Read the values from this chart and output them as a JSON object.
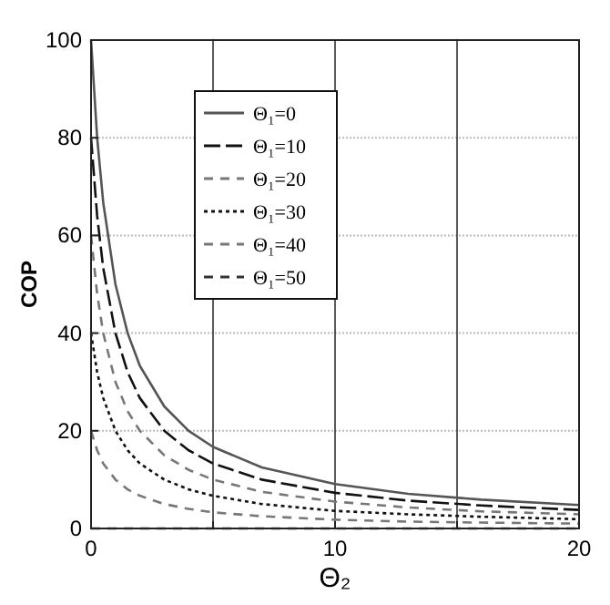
{
  "chart_data": {
    "type": "line",
    "xlabel": "Θ₂",
    "ylabel": "COP",
    "x": [
      0,
      0.25,
      0.5,
      1,
      1.5,
      2,
      3,
      4,
      5,
      7,
      10,
      13,
      16,
      20
    ],
    "xlim": [
      0,
      20
    ],
    "ylim": [
      0,
      100
    ],
    "xticks": [
      0,
      {
        "value": 5,
        "label": null
      },
      10,
      {
        "value": 15,
        "label": null
      },
      20
    ],
    "yticks": [
      0,
      20,
      40,
      60,
      80,
      100
    ],
    "grid": true,
    "legend": "top",
    "series": [
      {
        "name": "Θ₁=0",
        "color": "#555555",
        "line_style": "solid",
        "values": [
          100,
          80,
          66.7,
          50,
          40,
          33.3,
          25,
          20,
          16.7,
          12.5,
          9.1,
          7.1,
          5.9,
          4.8
        ]
      },
      {
        "name": "Θ₁=10",
        "color": "#111111",
        "line_style": "dashed",
        "values": [
          80,
          64,
          53.3,
          40,
          32,
          26.7,
          20,
          16,
          13.3,
          10,
          7.3,
          5.7,
          4.7,
          3.8
        ]
      },
      {
        "name": "Θ₁=20",
        "color": "#777777",
        "line_style": "dashed",
        "values": [
          60,
          48,
          40,
          30,
          24,
          20,
          15,
          12,
          10,
          7.5,
          5.5,
          4.3,
          3.5,
          2.9
        ]
      },
      {
        "name": "Θ₁=30",
        "color": "#111111",
        "line_style": "dotted",
        "values": [
          40,
          32,
          26.7,
          20,
          16,
          13.3,
          10,
          8,
          6.7,
          5,
          3.6,
          2.9,
          2.4,
          1.9
        ]
      },
      {
        "name": "Θ₁=40",
        "color": "#777777",
        "line_style": "dashed",
        "values": [
          20,
          16,
          13.3,
          10,
          8,
          6.7,
          5,
          4,
          3.3,
          2.5,
          1.8,
          1.4,
          1.2,
          1
        ]
      },
      {
        "name": "Θ₁=50",
        "color": "#333333",
        "line_style": "dashed",
        "values": [
          0,
          0,
          0,
          0,
          0,
          0,
          0,
          0,
          0,
          0,
          0,
          0,
          0,
          0
        ]
      }
    ]
  }
}
